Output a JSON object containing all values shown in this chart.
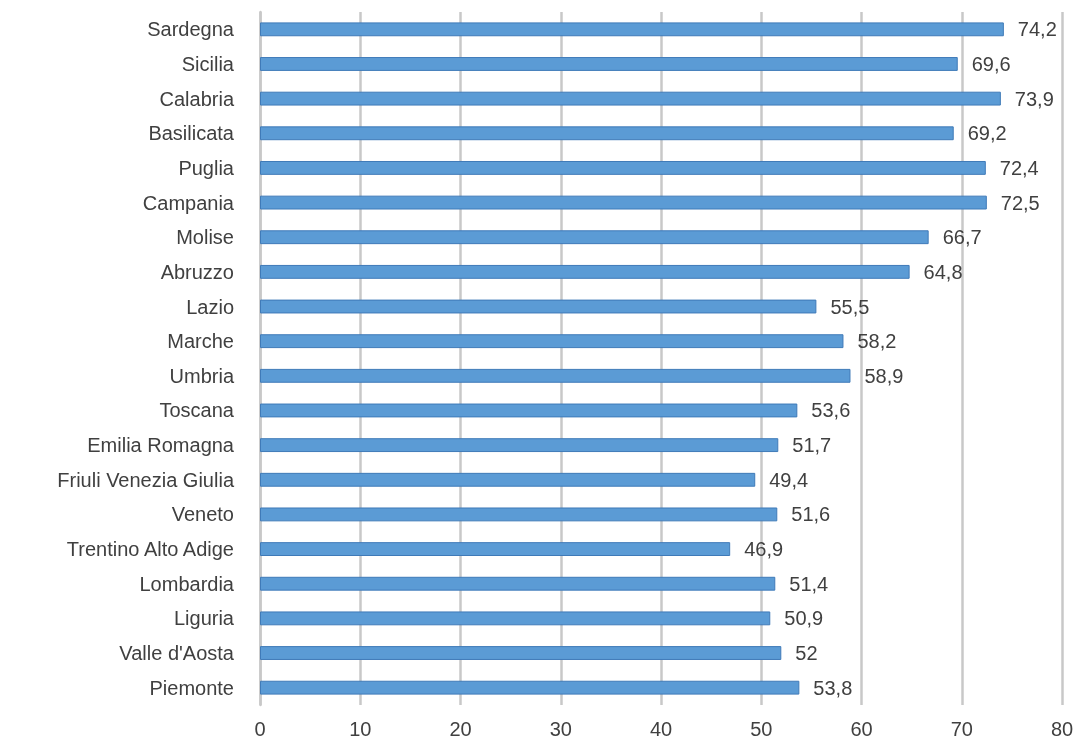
{
  "chart_data": {
    "type": "bar",
    "orientation": "horizontal",
    "categories": [
      "Sardegna",
      "Sicilia",
      "Calabria",
      "Basilicata",
      "Puglia",
      "Campania",
      "Molise",
      "Abruzzo",
      "Lazio",
      "Marche",
      "Umbria",
      "Toscana",
      "Emilia Romagna",
      "Friuli Venezia Giulia",
      "Veneto",
      "Trentino Alto Adige",
      "Lombardia",
      "Liguria",
      "Valle d'Aosta",
      "Piemonte"
    ],
    "values": [
      74.2,
      69.6,
      73.9,
      69.2,
      72.4,
      72.5,
      66.7,
      64.8,
      55.5,
      58.2,
      58.9,
      53.6,
      51.7,
      49.4,
      51.6,
      46.9,
      51.4,
      50.9,
      52,
      53.8
    ],
    "value_labels": [
      "74,2",
      "69,6",
      "73,9",
      "69,2",
      "72,4",
      "72,5",
      "66,7",
      "64,8",
      "55,5",
      "58,2",
      "58,9",
      "53,6",
      "51,7",
      "49,4",
      "51,6",
      "46,9",
      "51,4",
      "50,9",
      "52",
      "53,8"
    ],
    "color": "#5b9bd5",
    "xlim": [
      0,
      80
    ],
    "xticks": [
      0,
      10,
      20,
      30,
      40,
      50,
      60,
      70,
      80
    ],
    "grid": "x"
  }
}
